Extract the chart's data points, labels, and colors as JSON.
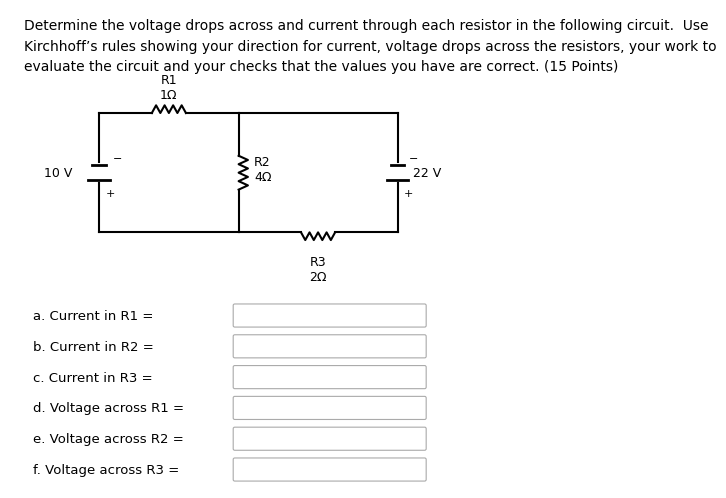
{
  "title_text": "Determine the voltage drops across and current through each resistor in the following circuit.  Use\nKirchhoff’s rules showing your direction for current, voltage drops across the resistors, your work to\nevaluate the circuit and your checks that the values you have are correct. (15 Points)",
  "bg_color": "#ffffff",
  "text_color": "#000000",
  "questions": [
    "a. Current in R1 =",
    "b. Current in R2 =",
    "c. Current in R3 =",
    "d. Voltage across R1 =",
    "e. Voltage across R2 =",
    "f. Voltage across R3 ="
  ],
  "font_size_title": 10.0,
  "font_size_labels": 9.0,
  "font_size_q": 9.5
}
